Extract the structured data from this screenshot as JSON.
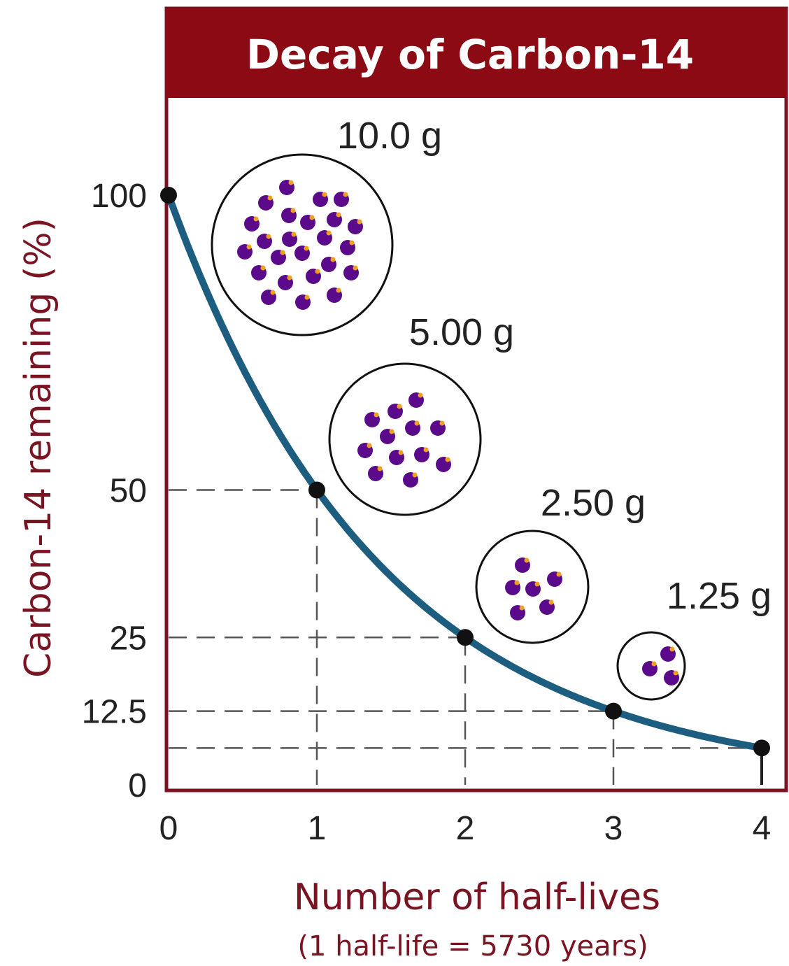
{
  "chart_data": {
    "type": "line",
    "title": "Decay of Carbon-14",
    "xlabel": "Number of half-lives",
    "xlabel_note": "(1 half-life = 5730 years)",
    "ylabel": "Carbon-14 remaining (%)",
    "xlim": [
      0,
      4
    ],
    "ylim": [
      0,
      100
    ],
    "x_ticks": [
      "0",
      "1",
      "2",
      "3",
      "4"
    ],
    "y_ticks": [
      {
        "value": 100,
        "label": "100"
      },
      {
        "value": 50,
        "label": "50"
      },
      {
        "value": 25,
        "label": "25"
      },
      {
        "value": 12.5,
        "label": "12.5"
      },
      {
        "value": 0,
        "label": "0"
      }
    ],
    "points": [
      {
        "x": 0,
        "y": 100
      },
      {
        "x": 1,
        "y": 50
      },
      {
        "x": 2,
        "y": 25
      },
      {
        "x": 3,
        "y": 12.5
      },
      {
        "x": 4,
        "y": 6.25
      }
    ],
    "sample_masses": [
      {
        "label": "10.0 g",
        "atoms": 24
      },
      {
        "label": "5.00 g",
        "atoms": 12
      },
      {
        "label": "2.50 g",
        "atoms": 6
      },
      {
        "label": "1.25 g",
        "atoms": 3
      }
    ],
    "grid": "dashed guide lines to the half-life points",
    "colors": {
      "title_bar": "#8b0a14",
      "frame": "#7a1422",
      "curve": "#1d5e80",
      "point": "#111111",
      "atom": "#5a0a8a",
      "atom_highlight": "#f0a020",
      "guide": "#555555",
      "axis_text": "#7a1422"
    }
  }
}
